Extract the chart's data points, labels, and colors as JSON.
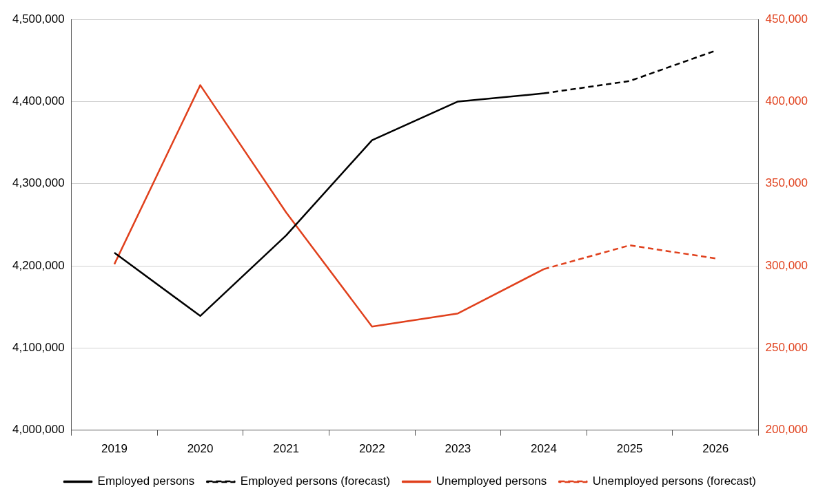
{
  "chart_data": {
    "type": "line",
    "categories": [
      "2019",
      "2020",
      "2021",
      "2022",
      "2023",
      "2024",
      "2025",
      "2026"
    ],
    "series": [
      {
        "name": "Employed persons",
        "color": "#000000",
        "values": [
          4216000,
          4139000,
          4237000,
          4353000,
          4400000,
          4410000,
          null,
          null
        ],
        "line_style": "solid"
      },
      {
        "name": "Employed persons (forecast)",
        "color": "#000000",
        "values": [
          null,
          null,
          null,
          null,
          null,
          4410000,
          4425000,
          4462000
        ],
        "line_style": "dashed"
      },
      {
        "name": "Unemployed persons",
        "color": "#e0401c",
        "values": [
          301000,
          410000,
          332500,
          263000,
          271000,
          298000,
          null,
          null
        ],
        "axis": "y2",
        "line_style": "solid"
      },
      {
        "name": "Unemployed persons (forecast)",
        "color": "#e0401c",
        "values": [
          null,
          null,
          null,
          null,
          null,
          298000,
          312500,
          304500
        ],
        "axis": "y2",
        "line_style": "dashed"
      }
    ],
    "ylim": [
      4000000,
      4500000
    ],
    "yticks": [
      {
        "value": 4000000,
        "label": "4,000,000"
      },
      {
        "value": 4100000,
        "label": "4,100,000"
      },
      {
        "value": 4200000,
        "label": "4,200,000"
      },
      {
        "value": 4300000,
        "label": "4,300,000"
      },
      {
        "value": 4400000,
        "label": "4,400,000"
      },
      {
        "value": 4500000,
        "label": "4,500,000"
      }
    ],
    "y2lim": [
      200000,
      450000
    ],
    "y2ticks": [
      {
        "value": 200000,
        "label": "200,000"
      },
      {
        "value": 250000,
        "label": "250,000"
      },
      {
        "value": 300000,
        "label": "300,000"
      },
      {
        "value": 350000,
        "label": "350,000"
      },
      {
        "value": 400000,
        "label": "400,000"
      },
      {
        "value": 450000,
        "label": "450,000"
      }
    ],
    "grid": "y",
    "legend": "bottom",
    "marker": "none"
  }
}
